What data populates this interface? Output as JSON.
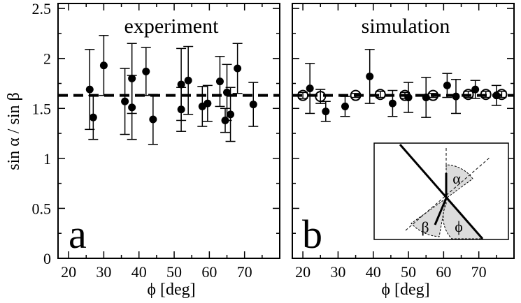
{
  "chart_data": [
    {
      "type": "scatter",
      "panel_letter": "a",
      "title": "experiment",
      "xlabel": "ϕ [deg]",
      "ylabel": "sin α / sin β",
      "xlim": [
        17,
        80
      ],
      "ylim": [
        0,
        2.55
      ],
      "xticks": [
        "20",
        "30",
        "40",
        "50",
        "60",
        "70"
      ],
      "yticks": [
        "0",
        "0.5",
        "1",
        "1.5",
        "2",
        "2.5"
      ],
      "grid": false,
      "reference_line": {
        "y": 1.63,
        "style": "dashed"
      },
      "series": [
        {
          "marker": "filled-circle",
          "points": [
            {
              "x": 26,
              "y": 1.69,
              "err": 0.4
            },
            {
              "x": 27,
              "y": 1.41,
              "err": 0.22
            },
            {
              "x": 30,
              "y": 1.93,
              "err": 0.3
            },
            {
              "x": 36,
              "y": 1.57,
              "err": 0.33
            },
            {
              "x": 38,
              "y": 1.51,
              "err": 0.32
            },
            {
              "x": 38,
              "y": 1.8,
              "err": 0.35
            },
            {
              "x": 42,
              "y": 1.87,
              "err": 0.24
            },
            {
              "x": 44,
              "y": 1.39,
              "err": 0.25
            },
            {
              "x": 52,
              "y": 1.74,
              "err": 0.36
            },
            {
              "x": 52,
              "y": 1.49,
              "err": 0.22
            },
            {
              "x": 54,
              "y": 1.78,
              "err": 0.34
            },
            {
              "x": 58,
              "y": 1.52,
              "err": 0.2
            },
            {
              "x": 59.5,
              "y": 1.55,
              "err": 0.18
            },
            {
              "x": 63,
              "y": 1.77,
              "err": 0.25
            },
            {
              "x": 64.5,
              "y": 1.38,
              "err": 0.12
            },
            {
              "x": 65,
              "y": 1.66,
              "err": 0.28
            },
            {
              "x": 66,
              "y": 1.44,
              "err": 0.27
            },
            {
              "x": 68,
              "y": 1.9,
              "err": 0.25
            },
            {
              "x": 72.5,
              "y": 1.54,
              "err": 0.22
            }
          ]
        }
      ]
    },
    {
      "type": "scatter",
      "panel_letter": "b",
      "title": "simulation",
      "xlabel": "ϕ [deg]",
      "ylabel": "",
      "xlim": [
        17,
        80
      ],
      "ylim": [
        0,
        2.55
      ],
      "xticks": [
        "20",
        "30",
        "40",
        "50",
        "60",
        "70"
      ],
      "yticks": [],
      "grid": false,
      "reference_line": {
        "y": 1.63,
        "style": "dashed"
      },
      "series": [
        {
          "marker": "filled-circle",
          "points": [
            {
              "x": 22,
              "y": 1.7,
              "err": 0.25
            },
            {
              "x": 26.5,
              "y": 1.47,
              "err": 0.1
            },
            {
              "x": 32,
              "y": 1.52,
              "err": 0.1
            },
            {
              "x": 39,
              "y": 1.82,
              "err": 0.27
            },
            {
              "x": 45.5,
              "y": 1.55,
              "err": 0.13
            },
            {
              "x": 50,
              "y": 1.61,
              "err": 0.15
            },
            {
              "x": 55,
              "y": 1.61,
              "err": 0.2
            },
            {
              "x": 61,
              "y": 1.73,
              "err": 0.12
            },
            {
              "x": 63.5,
              "y": 1.62,
              "err": 0.17
            },
            {
              "x": 69,
              "y": 1.69,
              "err": 0.09
            },
            {
              "x": 75,
              "y": 1.63,
              "err": 0.1
            }
          ]
        },
        {
          "marker": "open-circle",
          "points": [
            {
              "x": 20,
              "y": 1.63,
              "err": 0.03
            },
            {
              "x": 25,
              "y": 1.62,
              "err": 0.07
            },
            {
              "x": 35,
              "y": 1.63,
              "err": 0.02
            },
            {
              "x": 42,
              "y": 1.64,
              "err": 0.03
            },
            {
              "x": 49,
              "y": 1.63,
              "err": 0.03
            },
            {
              "x": 57,
              "y": 1.63,
              "err": 0.02
            },
            {
              "x": 67,
              "y": 1.64,
              "err": 0.03
            },
            {
              "x": 72,
              "y": 1.64,
              "err": 0.03
            },
            {
              "x": 76.5,
              "y": 1.64,
              "err": 0.03
            }
          ]
        }
      ],
      "inset": {
        "labels": [
          "α",
          "β",
          "ϕ"
        ]
      }
    }
  ]
}
